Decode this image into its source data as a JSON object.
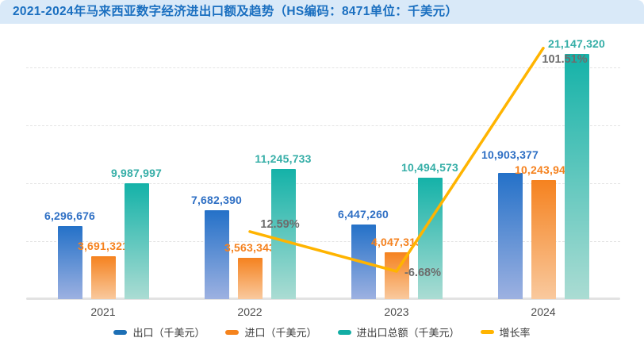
{
  "header": {
    "title": "2021-2024年马来西亚数字经济进出口额及趋势（HS编码：8471单位：千美元）"
  },
  "colors": {
    "header_bg": "#d9e9f8",
    "header_text": "#1a6fc0",
    "export_top": "#2471c8",
    "export_bottom": "#9db1e1",
    "export_label": "#2e6fc4",
    "import_top": "#f5821f",
    "import_bottom": "#f9c99e",
    "import_label": "#f5821f",
    "total_top": "#14b2a8",
    "total_bottom": "#abdcd3",
    "total_label": "#35aea7",
    "growth_line": "#ffb400",
    "pct_text": "#6d6d6d",
    "year_text": "#4a4a4a",
    "grid": "#e4e4e4",
    "axis": "#e2e2e2",
    "legend_export_swatch": "#1d6fb5",
    "legend_import_swatch": "#f5831d",
    "legend_total_swatch": "#12ada4",
    "legend_growth_swatch": "#ffb400"
  },
  "chart_data": {
    "type": "bar",
    "title": "2021-2024年马来西亚数字经济进出口额及趋势（HS编码：8471单位：千美元）",
    "categories": [
      "2021",
      "2022",
      "2023",
      "2024"
    ],
    "series": [
      {
        "name": "出口（千美元）",
        "type": "bar",
        "values": [
          6296676,
          7682390,
          6447260,
          10903377
        ]
      },
      {
        "name": "进口（千美元）",
        "type": "bar",
        "values": [
          3691321,
          3563343,
          4047313,
          10243943
        ]
      },
      {
        "name": "进出口总额（千美元）",
        "type": "bar",
        "values": [
          9987997,
          11245733,
          10494573,
          21147320
        ]
      },
      {
        "name": "增长率",
        "type": "line",
        "values": [
          null,
          12.59,
          -6.68,
          101.51
        ],
        "unit": "%"
      }
    ],
    "value_axis": {
      "min": 0,
      "max": 25000000,
      "gridline_step": 5000000,
      "labels_visible": false
    },
    "grid": "horizontal-dashed",
    "legend_position": "bottom",
    "data_labels": "on"
  },
  "legend": {
    "items": [
      {
        "label": "出口（千美元）"
      },
      {
        "label": "进口（千美元）"
      },
      {
        "label": "进出口总额（千美元）"
      },
      {
        "label": "增长率"
      }
    ]
  }
}
